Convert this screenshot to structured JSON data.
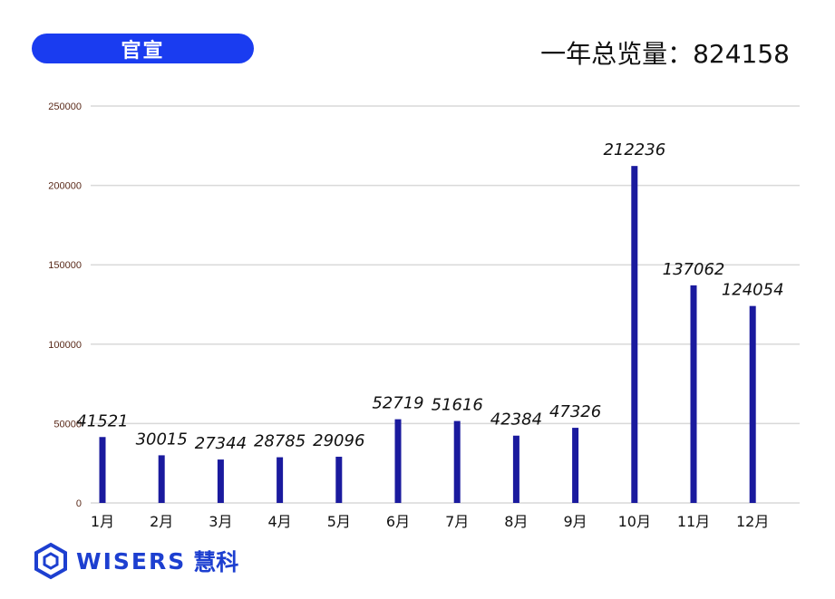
{
  "header": {
    "badge_label": "官宣",
    "total_label": "一年总览量：",
    "total_value": "824158"
  },
  "logo": {
    "wordmark": "WISERS",
    "chinese": "慧科",
    "icon": "hexagon-logo-icon",
    "color": "#1d3fd0"
  },
  "chart_data": {
    "type": "bar",
    "categories": [
      "1月",
      "2月",
      "3月",
      "4月",
      "5月",
      "6月",
      "7月",
      "8月",
      "9月",
      "10月",
      "11月",
      "12月"
    ],
    "values": [
      41521,
      30015,
      27344,
      28785,
      29096,
      52719,
      51616,
      42384,
      47326,
      212236,
      137062,
      124054
    ],
    "y_ticks": [
      0,
      50000,
      100000,
      150000,
      200000,
      250000
    ],
    "ylim": [
      0,
      250000
    ],
    "grid": true,
    "bar_color": "#1a1a9e",
    "data_labels": true
  }
}
